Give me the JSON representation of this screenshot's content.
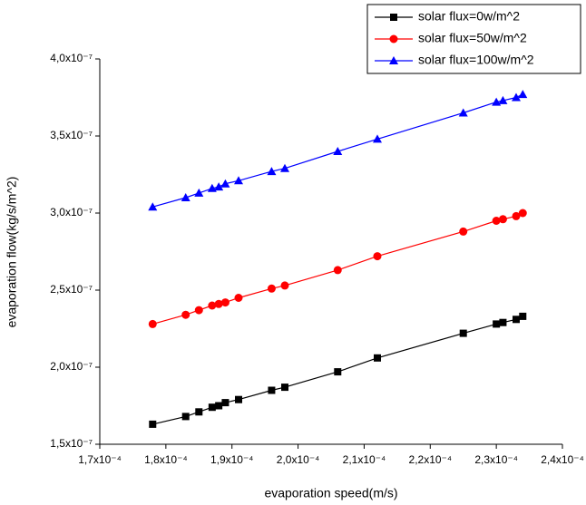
{
  "chart_data": {
    "type": "line",
    "x_label": "evaporation speed(m/s)",
    "y_label": "evaporation flow(kg/s/m^2)",
    "x": [
      0.000178,
      0.000183,
      0.000185,
      0.000187,
      0.000188,
      0.000189,
      0.000191,
      0.000196,
      0.000198,
      0.000206,
      0.000212,
      0.000225,
      0.00023,
      0.000231,
      0.000233,
      0.000234
    ],
    "series": [
      {
        "name": "solar flux=0w/m^2",
        "color": "#000000",
        "marker": "square",
        "values": [
          1.63e-07,
          1.68e-07,
          1.71e-07,
          1.74e-07,
          1.75e-07,
          1.77e-07,
          1.79e-07,
          1.85e-07,
          1.87e-07,
          1.97e-07,
          2.06e-07,
          2.22e-07,
          2.28e-07,
          2.29e-07,
          2.31e-07,
          2.33e-07
        ]
      },
      {
        "name": "solar flux=50w/m^2",
        "color": "#ff0000",
        "marker": "circle",
        "values": [
          2.28e-07,
          2.34e-07,
          2.37e-07,
          2.4e-07,
          2.41e-07,
          2.42e-07,
          2.45e-07,
          2.51e-07,
          2.53e-07,
          2.63e-07,
          2.72e-07,
          2.88e-07,
          2.95e-07,
          2.96e-07,
          2.98e-07,
          3e-07
        ]
      },
      {
        "name": "solar flux=100w/m^2",
        "color": "#0000ff",
        "marker": "triangle",
        "values": [
          3.04e-07,
          3.1e-07,
          3.13e-07,
          3.16e-07,
          3.17e-07,
          3.19e-07,
          3.21e-07,
          3.27e-07,
          3.29e-07,
          3.4e-07,
          3.48e-07,
          3.65e-07,
          3.72e-07,
          3.73e-07,
          3.75e-07,
          3.77e-07
        ]
      }
    ],
    "xlim": [
      0.00017,
      0.00024
    ],
    "xticks": [
      {
        "value": 0.00017,
        "label": "1,7x10⁻⁴"
      },
      {
        "value": 0.00018,
        "label": "1,8x10⁻⁴"
      },
      {
        "value": 0.00019,
        "label": "1,9x10⁻⁴"
      },
      {
        "value": 0.0002,
        "label": "2,0x10⁻⁴"
      },
      {
        "value": 0.00021,
        "label": "2,1x10⁻⁴"
      },
      {
        "value": 0.00022,
        "label": "2,2x10⁻⁴"
      },
      {
        "value": 0.00023,
        "label": "2,3x10⁻⁴"
      },
      {
        "value": 0.00024,
        "label": "2,4x10⁻⁴"
      }
    ],
    "ylim": [
      1.5e-07,
      4e-07
    ],
    "yticks": [
      {
        "value": 1.5e-07,
        "label": "1,5x10⁻⁷"
      },
      {
        "value": 2e-07,
        "label": "2,0x10⁻⁷"
      },
      {
        "value": 2.5e-07,
        "label": "2,5x10⁻⁷"
      },
      {
        "value": 3e-07,
        "label": "3,0x10⁻⁷"
      },
      {
        "value": 3.5e-07,
        "label": "3,5x10⁻⁷"
      },
      {
        "value": 4e-07,
        "label": "4,0x10⁻⁷"
      }
    ],
    "legend": "top-right"
  }
}
